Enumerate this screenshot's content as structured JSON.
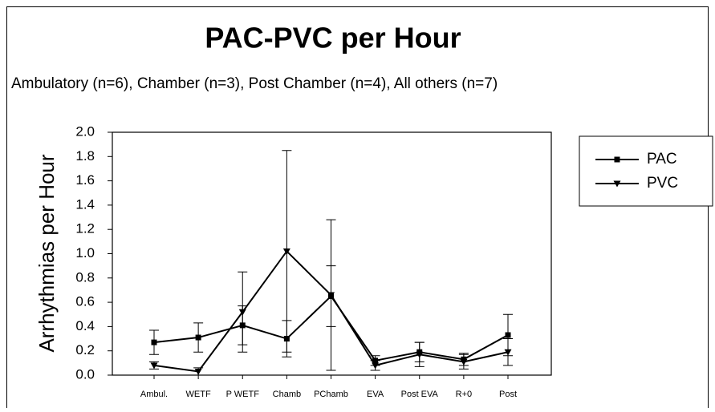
{
  "chart_data": {
    "type": "line",
    "title": "PAC-PVC per Hour",
    "subtitle": "Ambulatory (n=6), Chamber (n=3), Post Chamber (n=4), All others (n=7)",
    "y_label": "Arrhythmias per Hour",
    "categories": [
      "Ambul.",
      "WETF",
      "P WETF",
      "Chamb",
      "PChamb",
      "EVA",
      "Post EVA",
      "R+0",
      "Post"
    ],
    "series": [
      {
        "name": "PAC",
        "color": "#000000",
        "marker": "square",
        "values": [
          0.27,
          0.31,
          0.41,
          0.3,
          0.65,
          0.12,
          0.19,
          0.13,
          0.33
        ],
        "errors": [
          0.1,
          0.12,
          0.16,
          0.15,
          0.25,
          0.04,
          0.08,
          0.05,
          0.17
        ]
      },
      {
        "name": "PVC",
        "color": "#000000",
        "marker": "triangle-down",
        "values": [
          0.08,
          0.03,
          0.52,
          1.02,
          0.66,
          0.08,
          0.17,
          0.11,
          0.19
        ],
        "errors": [
          0.03,
          0.03,
          0.33,
          0.83,
          0.62,
          0.04,
          0.1,
          0.06,
          0.11
        ]
      }
    ],
    "ylim": [
      0,
      2.0
    ],
    "yticks": [
      {
        "value": 0,
        "label": "0.0"
      },
      {
        "value": 0.2,
        "label": "0.2"
      },
      {
        "value": 0.4,
        "label": "0.4"
      },
      {
        "value": 0.6,
        "label": "0.6"
      },
      {
        "value": 0.8,
        "label": "0.8"
      },
      {
        "value": 1.0,
        "label": "1.0"
      },
      {
        "value": 1.2,
        "label": "1.2"
      },
      {
        "value": 1.4,
        "label": "1.4"
      },
      {
        "value": 1.6,
        "label": "1.6"
      },
      {
        "value": 1.8,
        "label": "1.8"
      },
      {
        "value": 2.0,
        "label": "2.0"
      }
    ],
    "grid": false,
    "legend": "right"
  }
}
